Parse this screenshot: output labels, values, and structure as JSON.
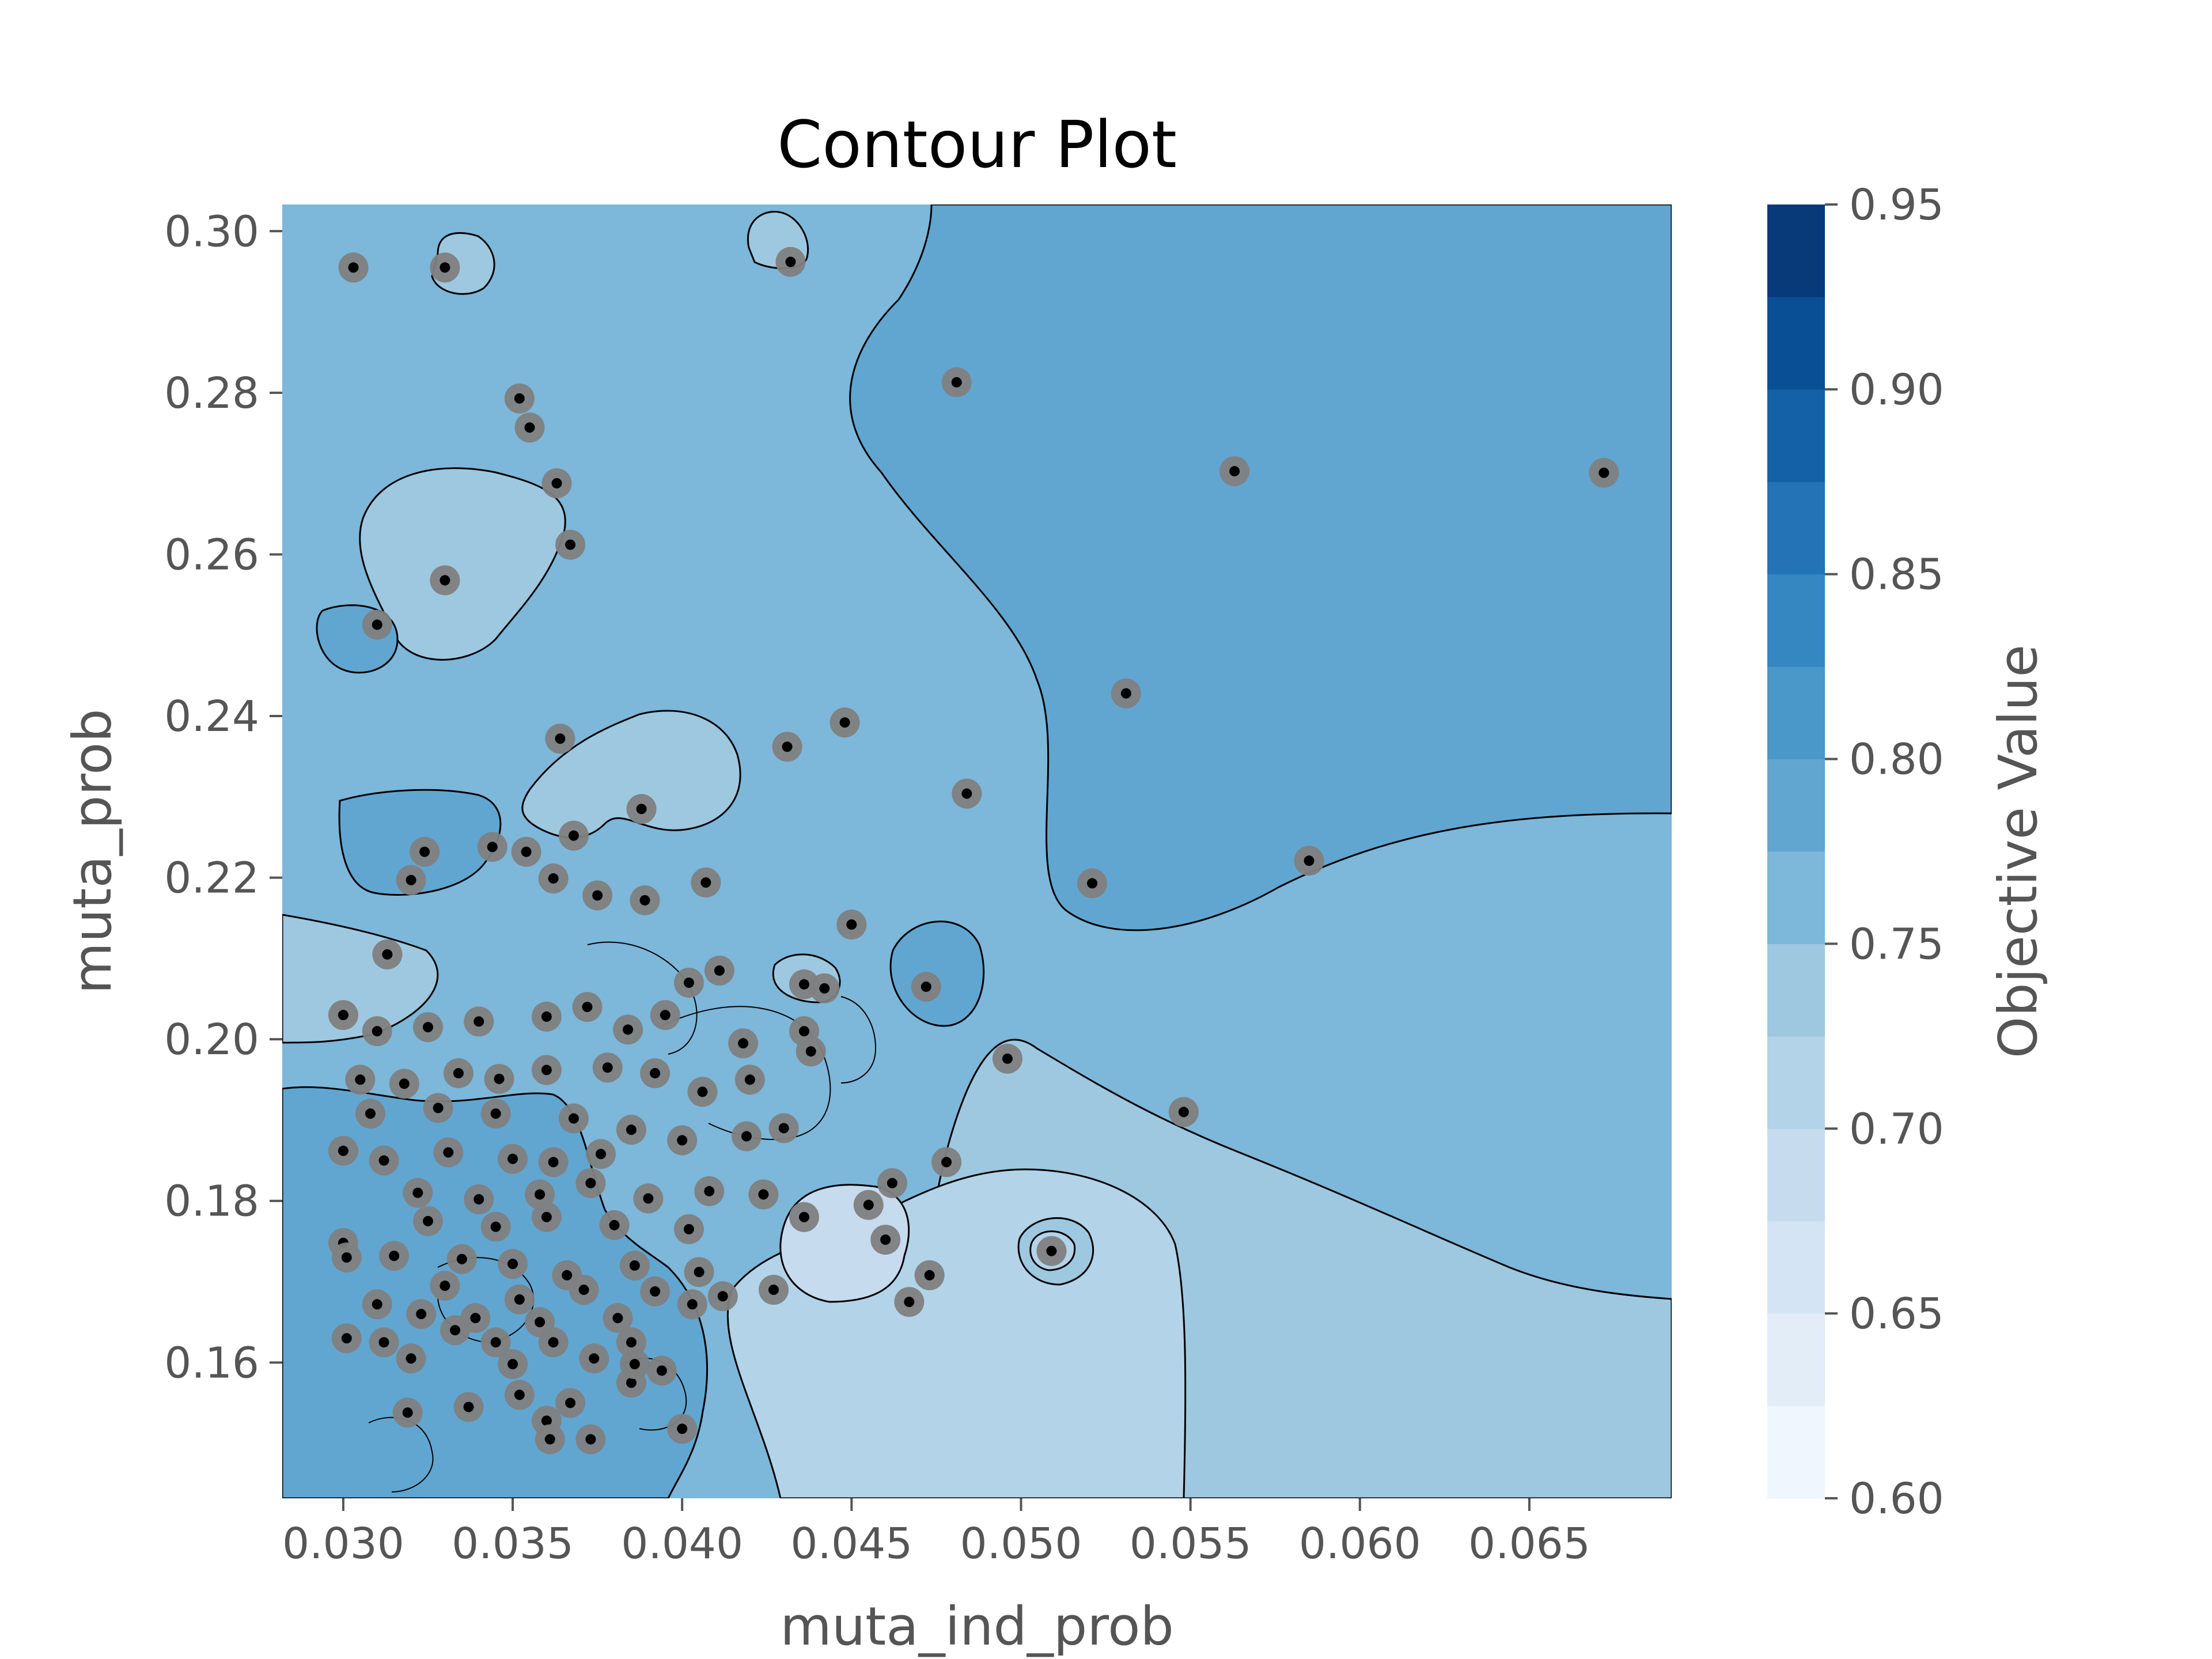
{
  "chart_data": {
    "type": "contour",
    "title": "Contour Plot",
    "xlabel": "muta_ind_prob",
    "ylabel": "muta_prob",
    "xlim": [
      0.0282,
      0.0692
    ],
    "ylim": [
      0.1432,
      0.3033
    ],
    "x_ticks": [
      "0.030",
      "0.035",
      "0.040",
      "0.045",
      "0.050",
      "0.055",
      "0.060",
      "0.065"
    ],
    "y_ticks": [
      "0.16",
      "0.18",
      "0.20",
      "0.22",
      "0.24",
      "0.26",
      "0.28",
      "0.30"
    ],
    "colorbar": {
      "label": "Objective Value",
      "ticks": [
        "0.60",
        "0.65",
        "0.70",
        "0.75",
        "0.80",
        "0.85",
        "0.90",
        "0.95"
      ],
      "range": [
        0.6,
        0.95
      ],
      "levels": [
        0.6,
        0.625,
        0.65,
        0.675,
        0.7,
        0.725,
        0.75,
        0.775,
        0.8,
        0.825,
        0.85,
        0.875,
        0.9,
        0.925,
        0.95
      ],
      "colors": [
        "#f0f6fd",
        "#e2edf8",
        "#d5e4f4",
        "#c7dbef",
        "#b3d3e8",
        "#9dc8e0",
        "#7db7da",
        "#61a6d1",
        "#4a97c9",
        "#3587c1",
        "#2373b6",
        "#1461a8",
        "#094f95",
        "#083a7a"
      ]
    },
    "grid": false,
    "points": [
      [
        0.0303,
        0.2955
      ],
      [
        0.033,
        0.2955
      ],
      [
        0.0432,
        0.2962
      ],
      [
        0.0481,
        0.2813
      ],
      [
        0.0352,
        0.2793
      ],
      [
        0.0355,
        0.2757
      ],
      [
        0.0363,
        0.2688
      ],
      [
        0.0367,
        0.2612
      ],
      [
        0.033,
        0.2568
      ],
      [
        0.031,
        0.2513
      ],
      [
        0.0563,
        0.2703
      ],
      [
        0.0672,
        0.2701
      ],
      [
        0.0531,
        0.2428
      ],
      [
        0.0448,
        0.2392
      ],
      [
        0.0431,
        0.2362
      ],
      [
        0.0364,
        0.2372
      ],
      [
        0.0484,
        0.2304
      ],
      [
        0.0388,
        0.2285
      ],
      [
        0.0368,
        0.2252
      ],
      [
        0.0354,
        0.2232
      ],
      [
        0.0324,
        0.2232
      ],
      [
        0.0344,
        0.2238
      ],
      [
        0.0585,
        0.2221
      ],
      [
        0.0521,
        0.2193
      ],
      [
        0.032,
        0.2197
      ],
      [
        0.0362,
        0.2199
      ],
      [
        0.0407,
        0.2194
      ],
      [
        0.0389,
        0.2172
      ],
      [
        0.0375,
        0.2178
      ],
      [
        0.045,
        0.2142
      ],
      [
        0.0313,
        0.2105
      ],
      [
        0.0411,
        0.2085
      ],
      [
        0.0402,
        0.207
      ],
      [
        0.0472,
        0.2065
      ],
      [
        0.0436,
        0.2068
      ],
      [
        0.0442,
        0.2063
      ],
      [
        0.03,
        0.203
      ],
      [
        0.031,
        0.201
      ],
      [
        0.0325,
        0.2015
      ],
      [
        0.034,
        0.2022
      ],
      [
        0.036,
        0.2028
      ],
      [
        0.0372,
        0.204
      ],
      [
        0.0384,
        0.2012
      ],
      [
        0.0395,
        0.203
      ],
      [
        0.0418,
        0.1995
      ],
      [
        0.0436,
        0.201
      ],
      [
        0.0496,
        0.1976
      ],
      [
        0.0438,
        0.1985
      ],
      [
        0.0305,
        0.195
      ],
      [
        0.0318,
        0.1945
      ],
      [
        0.0334,
        0.1958
      ],
      [
        0.0346,
        0.1951
      ],
      [
        0.036,
        0.1962
      ],
      [
        0.0378,
        0.1965
      ],
      [
        0.0392,
        0.1958
      ],
      [
        0.0406,
        0.1935
      ],
      [
        0.042,
        0.195
      ],
      [
        0.0548,
        0.191
      ],
      [
        0.0308,
        0.1908
      ],
      [
        0.0328,
        0.1915
      ],
      [
        0.0345,
        0.1908
      ],
      [
        0.0368,
        0.1902
      ],
      [
        0.0385,
        0.1888
      ],
      [
        0.04,
        0.1875
      ],
      [
        0.0419,
        0.188
      ],
      [
        0.043,
        0.189
      ],
      [
        0.03,
        0.1862
      ],
      [
        0.0312,
        0.185
      ],
      [
        0.0331,
        0.186
      ],
      [
        0.035,
        0.1852
      ],
      [
        0.0362,
        0.1848
      ],
      [
        0.0376,
        0.1858
      ],
      [
        0.0478,
        0.1848
      ],
      [
        0.0462,
        0.1822
      ],
      [
        0.0322,
        0.181
      ],
      [
        0.034,
        0.1802
      ],
      [
        0.0358,
        0.1808
      ],
      [
        0.0373,
        0.1822
      ],
      [
        0.039,
        0.1803
      ],
      [
        0.0408,
        0.1812
      ],
      [
        0.0424,
        0.1808
      ],
      [
        0.0455,
        0.1795
      ],
      [
        0.0436,
        0.178
      ],
      [
        0.0325,
        0.1775
      ],
      [
        0.0345,
        0.1768
      ],
      [
        0.036,
        0.178
      ],
      [
        0.038,
        0.177
      ],
      [
        0.0402,
        0.1765
      ],
      [
        0.046,
        0.1752
      ],
      [
        0.0509,
        0.1738
      ],
      [
        0.03,
        0.1748
      ],
      [
        0.0315,
        0.1732
      ],
      [
        0.0335,
        0.1728
      ],
      [
        0.035,
        0.1722
      ],
      [
        0.0366,
        0.1708
      ],
      [
        0.0386,
        0.172
      ],
      [
        0.0405,
        0.1712
      ],
      [
        0.0473,
        0.1708
      ],
      [
        0.0301,
        0.173
      ],
      [
        0.033,
        0.1695
      ],
      [
        0.0352,
        0.1678
      ],
      [
        0.0371,
        0.169
      ],
      [
        0.0392,
        0.1688
      ],
      [
        0.0412,
        0.1682
      ],
      [
        0.0427,
        0.169
      ],
      [
        0.0467,
        0.1675
      ],
      [
        0.031,
        0.1672
      ],
      [
        0.0323,
        0.166
      ],
      [
        0.0339,
        0.1655
      ],
      [
        0.0358,
        0.165
      ],
      [
        0.0381,
        0.1655
      ],
      [
        0.0403,
        0.1672
      ],
      [
        0.0301,
        0.163
      ],
      [
        0.0312,
        0.1625
      ],
      [
        0.0333,
        0.164
      ],
      [
        0.0345,
        0.1625
      ],
      [
        0.0362,
        0.1625
      ],
      [
        0.0385,
        0.1625
      ],
      [
        0.032,
        0.1605
      ],
      [
        0.035,
        0.1598
      ],
      [
        0.0374,
        0.1605
      ],
      [
        0.0394,
        0.159
      ],
      [
        0.0352,
        0.156
      ],
      [
        0.0367,
        0.155
      ],
      [
        0.0385,
        0.1575
      ],
      [
        0.0319,
        0.1538
      ],
      [
        0.0337,
        0.1545
      ],
      [
        0.036,
        0.1528
      ],
      [
        0.04,
        0.1518
      ],
      [
        0.0361,
        0.1505
      ],
      [
        0.0373,
        0.1505
      ],
      [
        0.0386,
        0.1598
      ]
    ]
  }
}
